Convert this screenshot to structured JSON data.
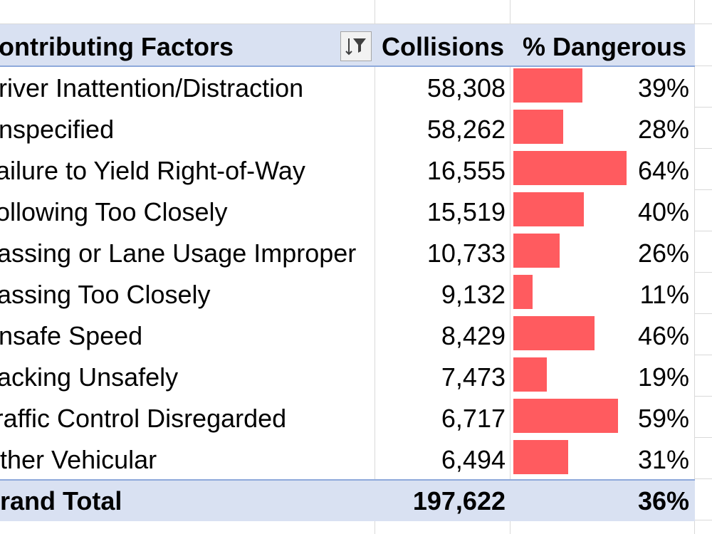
{
  "header": {
    "factors_label": "Contributing Factors",
    "collisions_label": "Collisions",
    "dangerous_label": "% Dangerous"
  },
  "filter_button": {
    "icon": "filter-sort-icon"
  },
  "rows": [
    {
      "factor": "Driver Inattention/Distraction",
      "collisions": "58,308",
      "dangerous": "39%",
      "dangerous_value": 39
    },
    {
      "factor": "Unspecified",
      "collisions": "58,262",
      "dangerous": "28%",
      "dangerous_value": 28
    },
    {
      "factor": "Failure to Yield Right-of-Way",
      "collisions": "16,555",
      "dangerous": "64%",
      "dangerous_value": 64
    },
    {
      "factor": "Following Too Closely",
      "collisions": "15,519",
      "dangerous": "40%",
      "dangerous_value": 40
    },
    {
      "factor": "Passing or Lane Usage Improper",
      "collisions": "10,733",
      "dangerous": "26%",
      "dangerous_value": 26
    },
    {
      "factor": "Passing Too Closely",
      "collisions": "9,132",
      "dangerous": "11%",
      "dangerous_value": 11
    },
    {
      "factor": "Unsafe Speed",
      "collisions": "8,429",
      "dangerous": "46%",
      "dangerous_value": 46
    },
    {
      "factor": "Backing Unsafely",
      "collisions": "7,473",
      "dangerous": "19%",
      "dangerous_value": 19
    },
    {
      "factor": "Traffic Control Disregarded",
      "collisions": "6,717",
      "dangerous": "59%",
      "dangerous_value": 59
    },
    {
      "factor": "Other Vehicular",
      "collisions": "6,494",
      "dangerous": "31%",
      "dangerous_value": 31
    }
  ],
  "total": {
    "label": "Grand Total",
    "collisions": "197,622",
    "dangerous": "36%"
  },
  "colors": {
    "bar": "#ff5b5f",
    "header_fill": "#d9e1f2",
    "border": "#8ea9db"
  }
}
